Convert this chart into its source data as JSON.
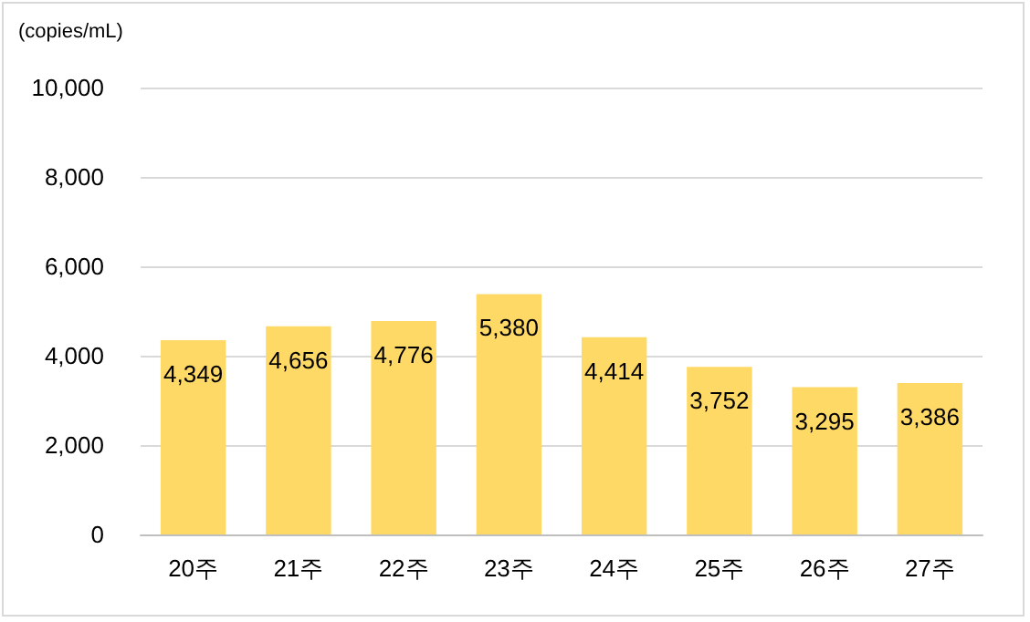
{
  "chart_data": {
    "type": "bar",
    "ylabel": "(copies/mL)",
    "categories": [
      "20주",
      "21주",
      "22주",
      "23주",
      "24주",
      "25주",
      "26주",
      "27주"
    ],
    "values": [
      4349,
      4656,
      4776,
      5380,
      4414,
      3752,
      3295,
      3386
    ],
    "value_labels": [
      "4,349",
      "4,656",
      "4,776",
      "5,380",
      "4,414",
      "3,752",
      "3,295",
      "3,386"
    ],
    "color": "#ffd966",
    "ylim": [
      0,
      10000
    ],
    "yticks": [
      0,
      {
        "value": 2000,
        "label": "2,000"
      },
      {
        "value": 4000,
        "label": "4,000"
      },
      {
        "value": 6000,
        "label": "6,000"
      },
      {
        "value": 8000,
        "label": "8,000"
      },
      {
        "value": 10000,
        "label": "10,000"
      }
    ],
    "grid": "y"
  }
}
